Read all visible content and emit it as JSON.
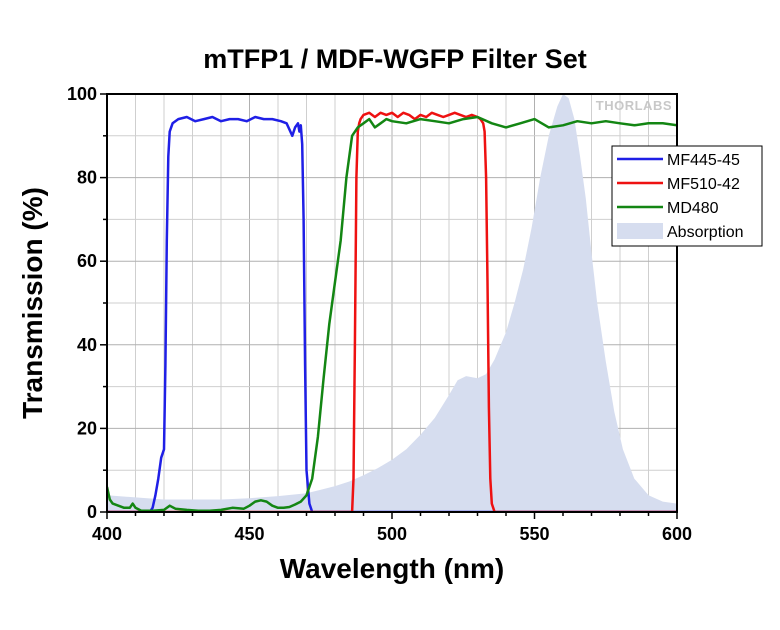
{
  "chart_data": {
    "type": "line",
    "title": "mTFP1 / MDF-WGFP Filter Set",
    "xlabel": "Wavelength (nm)",
    "ylabel": "Transmission (%)",
    "xlim": [
      400,
      600
    ],
    "ylim": [
      0,
      100
    ],
    "xticks": [
      400,
      450,
      500,
      550,
      600
    ],
    "yticks": [
      0,
      20,
      40,
      60,
      80,
      100
    ],
    "grid": true,
    "legend_position": "right",
    "watermark": "THORLABS",
    "series": [
      {
        "name": "MF445-45",
        "color": "#1f1fe6",
        "kind": "line",
        "x": [
          400,
          415,
          416,
          417,
          418,
          419,
          420,
          420.5,
          421,
          421.5,
          422,
          423,
          425,
          428,
          431,
          434,
          437,
          440,
          443,
          446,
          449,
          452,
          455,
          458,
          461,
          463,
          465,
          466,
          467,
          467.5,
          468,
          468.5,
          469,
          469.5,
          470,
          471,
          472,
          600
        ],
        "y": [
          0,
          0,
          1,
          4,
          8,
          13,
          15,
          35,
          65,
          85,
          91,
          93,
          94,
          94.5,
          93.5,
          94,
          94.5,
          93.5,
          94,
          94,
          93.5,
          94.5,
          94,
          94,
          93.5,
          93,
          90,
          92,
          93,
          91,
          92.5,
          88,
          70,
          35,
          10,
          2,
          0,
          0
        ]
      },
      {
        "name": "MF510-42",
        "color": "#ee1111",
        "kind": "line",
        "x": [
          400,
          486,
          486.5,
          487,
          487.5,
          488,
          488.5,
          489,
          490,
          492,
          494,
          496,
          498,
          500,
          502,
          504,
          506,
          508,
          510,
          512,
          514,
          516,
          518,
          520,
          522,
          524,
          526,
          528,
          530,
          531,
          532,
          532.5,
          533,
          533.5,
          534,
          534.5,
          535,
          536,
          600
        ],
        "y": [
          0,
          0,
          8,
          40,
          80,
          91,
          93,
          94,
          95,
          95.5,
          94.5,
          95.5,
          95,
          95.5,
          94.5,
          95.5,
          95,
          94,
          95,
          94.5,
          95.5,
          95,
          94.5,
          95,
          95.5,
          95,
          94.5,
          95,
          94.5,
          94,
          93,
          91,
          80,
          55,
          25,
          8,
          2,
          0,
          0
        ]
      },
      {
        "name": "MD480",
        "color": "#138613",
        "kind": "line",
        "x": [
          400,
          401,
          402,
          404,
          406,
          408,
          409,
          410,
          412,
          416,
          420,
          422,
          424,
          428,
          432,
          436,
          440,
          444,
          448,
          450,
          452,
          454,
          456,
          458,
          460,
          462,
          464,
          466,
          468,
          470,
          472,
          474,
          476,
          478,
          480,
          482,
          484,
          486,
          488,
          490,
          492,
          494,
          496,
          498,
          500,
          505,
          510,
          515,
          520,
          525,
          530,
          535,
          540,
          545,
          550,
          555,
          560,
          565,
          570,
          575,
          580,
          585,
          590,
          595,
          600
        ],
        "y": [
          6,
          3,
          2,
          1.5,
          1,
          1,
          2,
          1,
          0.3,
          0.3,
          0.5,
          1.5,
          0.8,
          0.5,
          0.3,
          0.3,
          0.5,
          1,
          0.8,
          1.5,
          2.5,
          2.8,
          2.5,
          1.5,
          1,
          1,
          1.2,
          1.8,
          2.5,
          4,
          8,
          18,
          32,
          45,
          55,
          65,
          80,
          90,
          92,
          93,
          94,
          92,
          93,
          94,
          93.5,
          93,
          94,
          93.5,
          93,
          94,
          94.5,
          93,
          92,
          93,
          94,
          92,
          92.5,
          93.5,
          93,
          93.5,
          93,
          92.5,
          93,
          93,
          92.5
        ]
      },
      {
        "name": "Absorption",
        "color": "#d6ddef",
        "kind": "area",
        "x": [
          400,
          410,
          420,
          430,
          440,
          450,
          460,
          470,
          475,
          480,
          485,
          490,
          495,
          500,
          505,
          510,
          515,
          520,
          523,
          526,
          530,
          533,
          536,
          540,
          543,
          546,
          549,
          552,
          555,
          558,
          560,
          562,
          564,
          566,
          568,
          570,
          572,
          575,
          578,
          581,
          585,
          590,
          595,
          600
        ],
        "y": [
          4,
          3.5,
          3,
          3,
          3,
          3.3,
          3.8,
          4.5,
          5.3,
          6.2,
          7.3,
          8.8,
          10.5,
          12.5,
          15,
          18.5,
          22.5,
          28,
          31.5,
          32.5,
          32,
          33,
          36.5,
          43,
          50,
          58,
          68,
          80,
          90,
          97,
          100,
          99,
          94,
          85,
          75,
          62,
          50,
          36,
          24,
          15,
          8,
          4,
          2.5,
          2
        ]
      }
    ]
  }
}
